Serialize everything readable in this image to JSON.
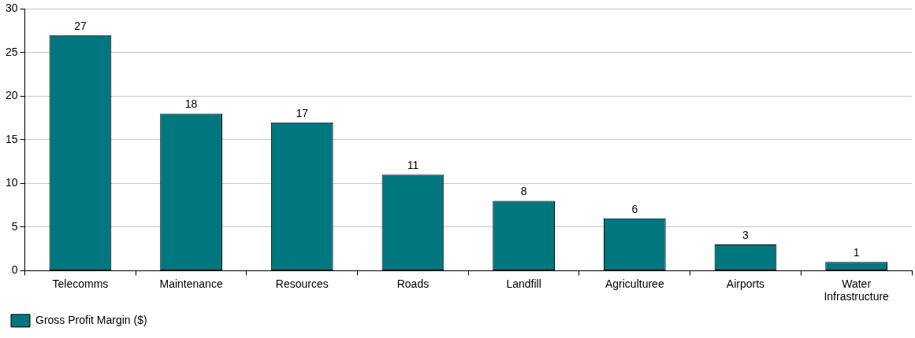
{
  "chart_data": {
    "type": "bar",
    "categories": [
      "Telecomms",
      "Maintenance",
      "Resources",
      "Roads",
      "Landfill",
      "Agriculturee",
      "Airports",
      "Water Infrastructure"
    ],
    "series": [
      {
        "name": "Gross Profit Margin ($)",
        "color": "#00767f",
        "values": [
          27,
          18,
          17,
          11,
          8,
          6,
          3,
          1
        ]
      }
    ],
    "ylim": [
      0,
      30
    ],
    "yticks": [
      0,
      5,
      10,
      15,
      20,
      25,
      30
    ],
    "grid": "y",
    "legend": "bottom left",
    "data_labels": true
  }
}
